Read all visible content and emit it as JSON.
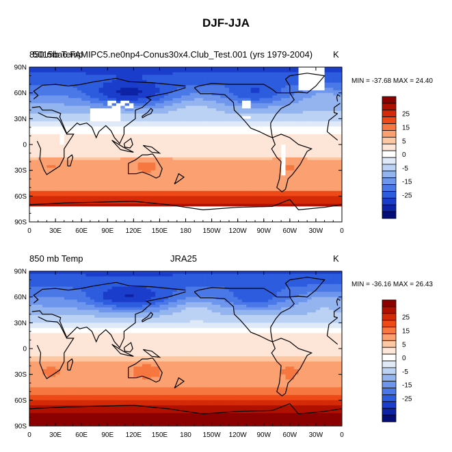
{
  "figure": {
    "title": "DJF-JJA"
  },
  "chart_data": [
    {
      "type": "heatmap",
      "left_title": "850 mb Temp",
      "center_title": "5015ba6.FAMIPC5.ne0np4-Conus30x4.Club_Test.001 (yrs 1979-2004)",
      "units": "K",
      "minmax": "MIN = -37.68 MAX =  24.40",
      "min": -37.68,
      "max": 24.4,
      "x_ticks": [
        "0",
        "30E",
        "60E",
        "90E",
        "120E",
        "150E",
        "180",
        "150W",
        "120W",
        "90W",
        "60W",
        "30W",
        "0"
      ],
      "y_ticks": [
        "90N",
        "60N",
        "30N",
        "0",
        "30S",
        "60S",
        "90S"
      ],
      "missing_high_terrain": true
    },
    {
      "type": "heatmap",
      "left_title": "850 mb Temp",
      "center_title": "JRA25",
      "units": "K",
      "minmax": "MIN = -36.16 MAX =  26.43",
      "min": -36.16,
      "max": 26.43,
      "x_ticks": [
        "0",
        "30E",
        "60E",
        "90E",
        "120E",
        "150E",
        "180",
        "150W",
        "120W",
        "90W",
        "60W",
        "30W",
        "0"
      ],
      "y_ticks": [
        "90N",
        "60N",
        "30N",
        "0",
        "30S",
        "60S",
        "90S"
      ],
      "missing_high_terrain": false
    }
  ],
  "colorbar": {
    "labels": [
      "25",
      "15",
      "5",
      "0",
      "-5",
      "-15",
      "-25"
    ],
    "colors": [
      "#8b0000",
      "#b01000",
      "#d42a08",
      "#ee4a18",
      "#f77740",
      "#fba070",
      "#fcc7a3",
      "#fde5d7",
      "#ffffff",
      "#dfe9f8",
      "#bcd2f4",
      "#93b4ef",
      "#6e96ec",
      "#4a78e6",
      "#2d5cde",
      "#1a3ecb",
      "#0e22a6",
      "#040c78"
    ]
  }
}
